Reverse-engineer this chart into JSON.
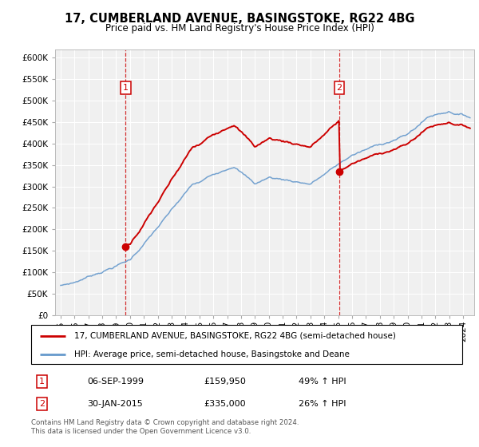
{
  "title": "17, CUMBERLAND AVENUE, BASINGSTOKE, RG22 4BG",
  "subtitle": "Price paid vs. HM Land Registry's House Price Index (HPI)",
  "legend_line1": "17, CUMBERLAND AVENUE, BASINGSTOKE, RG22 4BG (semi-detached house)",
  "legend_line2": "HPI: Average price, semi-detached house, Basingstoke and Deane",
  "transaction1_date": "06-SEP-1999",
  "transaction1_price": 159950,
  "transaction1_price_str": "£159,950",
  "transaction1_pct": "49% ↑ HPI",
  "transaction2_date": "30-JAN-2015",
  "transaction2_price": 335000,
  "transaction2_price_str": "£335,000",
  "transaction2_pct": "26% ↑ HPI",
  "footer": "Contains HM Land Registry data © Crown copyright and database right 2024.\nThis data is licensed under the Open Government Licence v3.0.",
  "red_color": "#cc0000",
  "blue_color": "#6699cc",
  "ylim_min": 0,
  "ylim_max": 620000,
  "t1_year": 1999.68,
  "t2_year": 2015.08,
  "xmin": 1994.6,
  "xmax": 2024.8,
  "bg_color": "#f0f0f0",
  "grid_color": "#ffffff"
}
